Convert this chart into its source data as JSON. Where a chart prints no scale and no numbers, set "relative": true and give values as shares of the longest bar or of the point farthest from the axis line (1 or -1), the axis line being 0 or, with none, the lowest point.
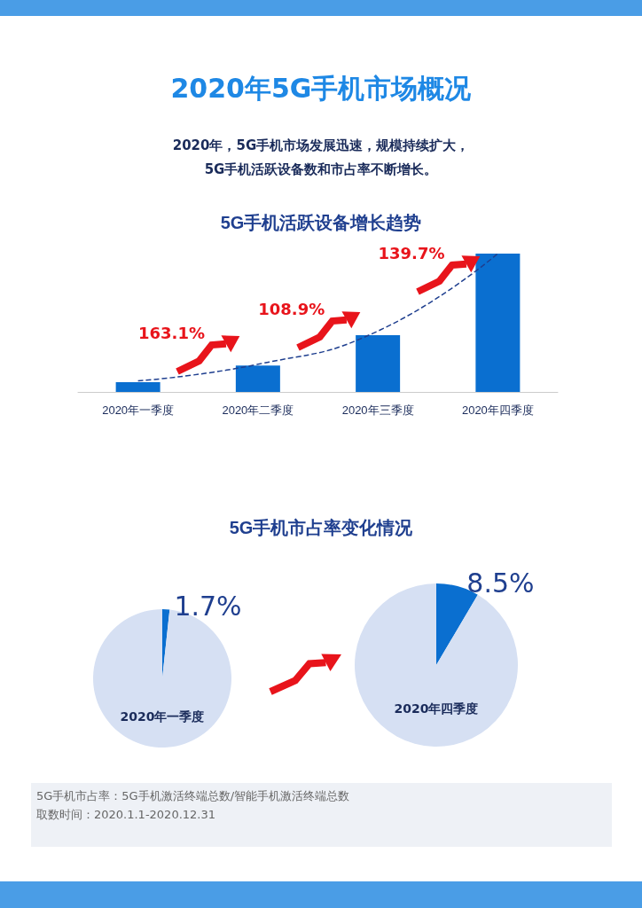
{
  "chart_data": [
    {
      "type": "other",
      "title": "2020年5G手机市场概况",
      "subtitle": "2020年，5G手机市场发展迅速，规模持续扩大，\n5G手机活跃设备数和市占率不断增长。"
    },
    {
      "type": "bar",
      "title": "5G手机活跃设备增长趋势",
      "relative": true,
      "categories": [
        "2020年一季度",
        "2020年二季度",
        "2020年三季度",
        "2020年四季度"
      ],
      "series": [
        {
          "type": "bar",
          "color": "#0a6fd0",
          "values": [
            0.07,
            0.19,
            0.41,
            1
          ]
        },
        {
          "type": "line",
          "color": "#1f3f8f",
          "line_style": "dashed",
          "marker": "none",
          "values": [
            0.08,
            0.2,
            0.44,
            1
          ]
        }
      ],
      "annotations": [
        "163.1%",
        "108.9%",
        "139.7%"
      ]
    },
    {
      "type": "pie",
      "title": "5G手机市占率变化情况",
      "subtitle": "2020年一季度",
      "categories": [
        null,
        null
      ],
      "values": [
        1.7,
        98.3
      ],
      "colors": [
        "#0a6fd0",
        "#d6e0f3"
      ],
      "value_labels": [
        "1.7%",
        null
      ]
    },
    {
      "type": "pie",
      "subtitle": "2020年四季度",
      "categories": [
        null,
        null
      ],
      "values": [
        8.5,
        91.5
      ],
      "colors": [
        "#0a6fd0",
        "#d6e0f3"
      ],
      "value_labels": [
        "8.5%",
        null
      ]
    },
    {
      "type": "other",
      "annotations": [
        "5G手机市占率：5G手机激活终端总数/智能手机激活终端总数",
        "取数时间：2020.1.1-2020.12.31"
      ]
    }
  ]
}
